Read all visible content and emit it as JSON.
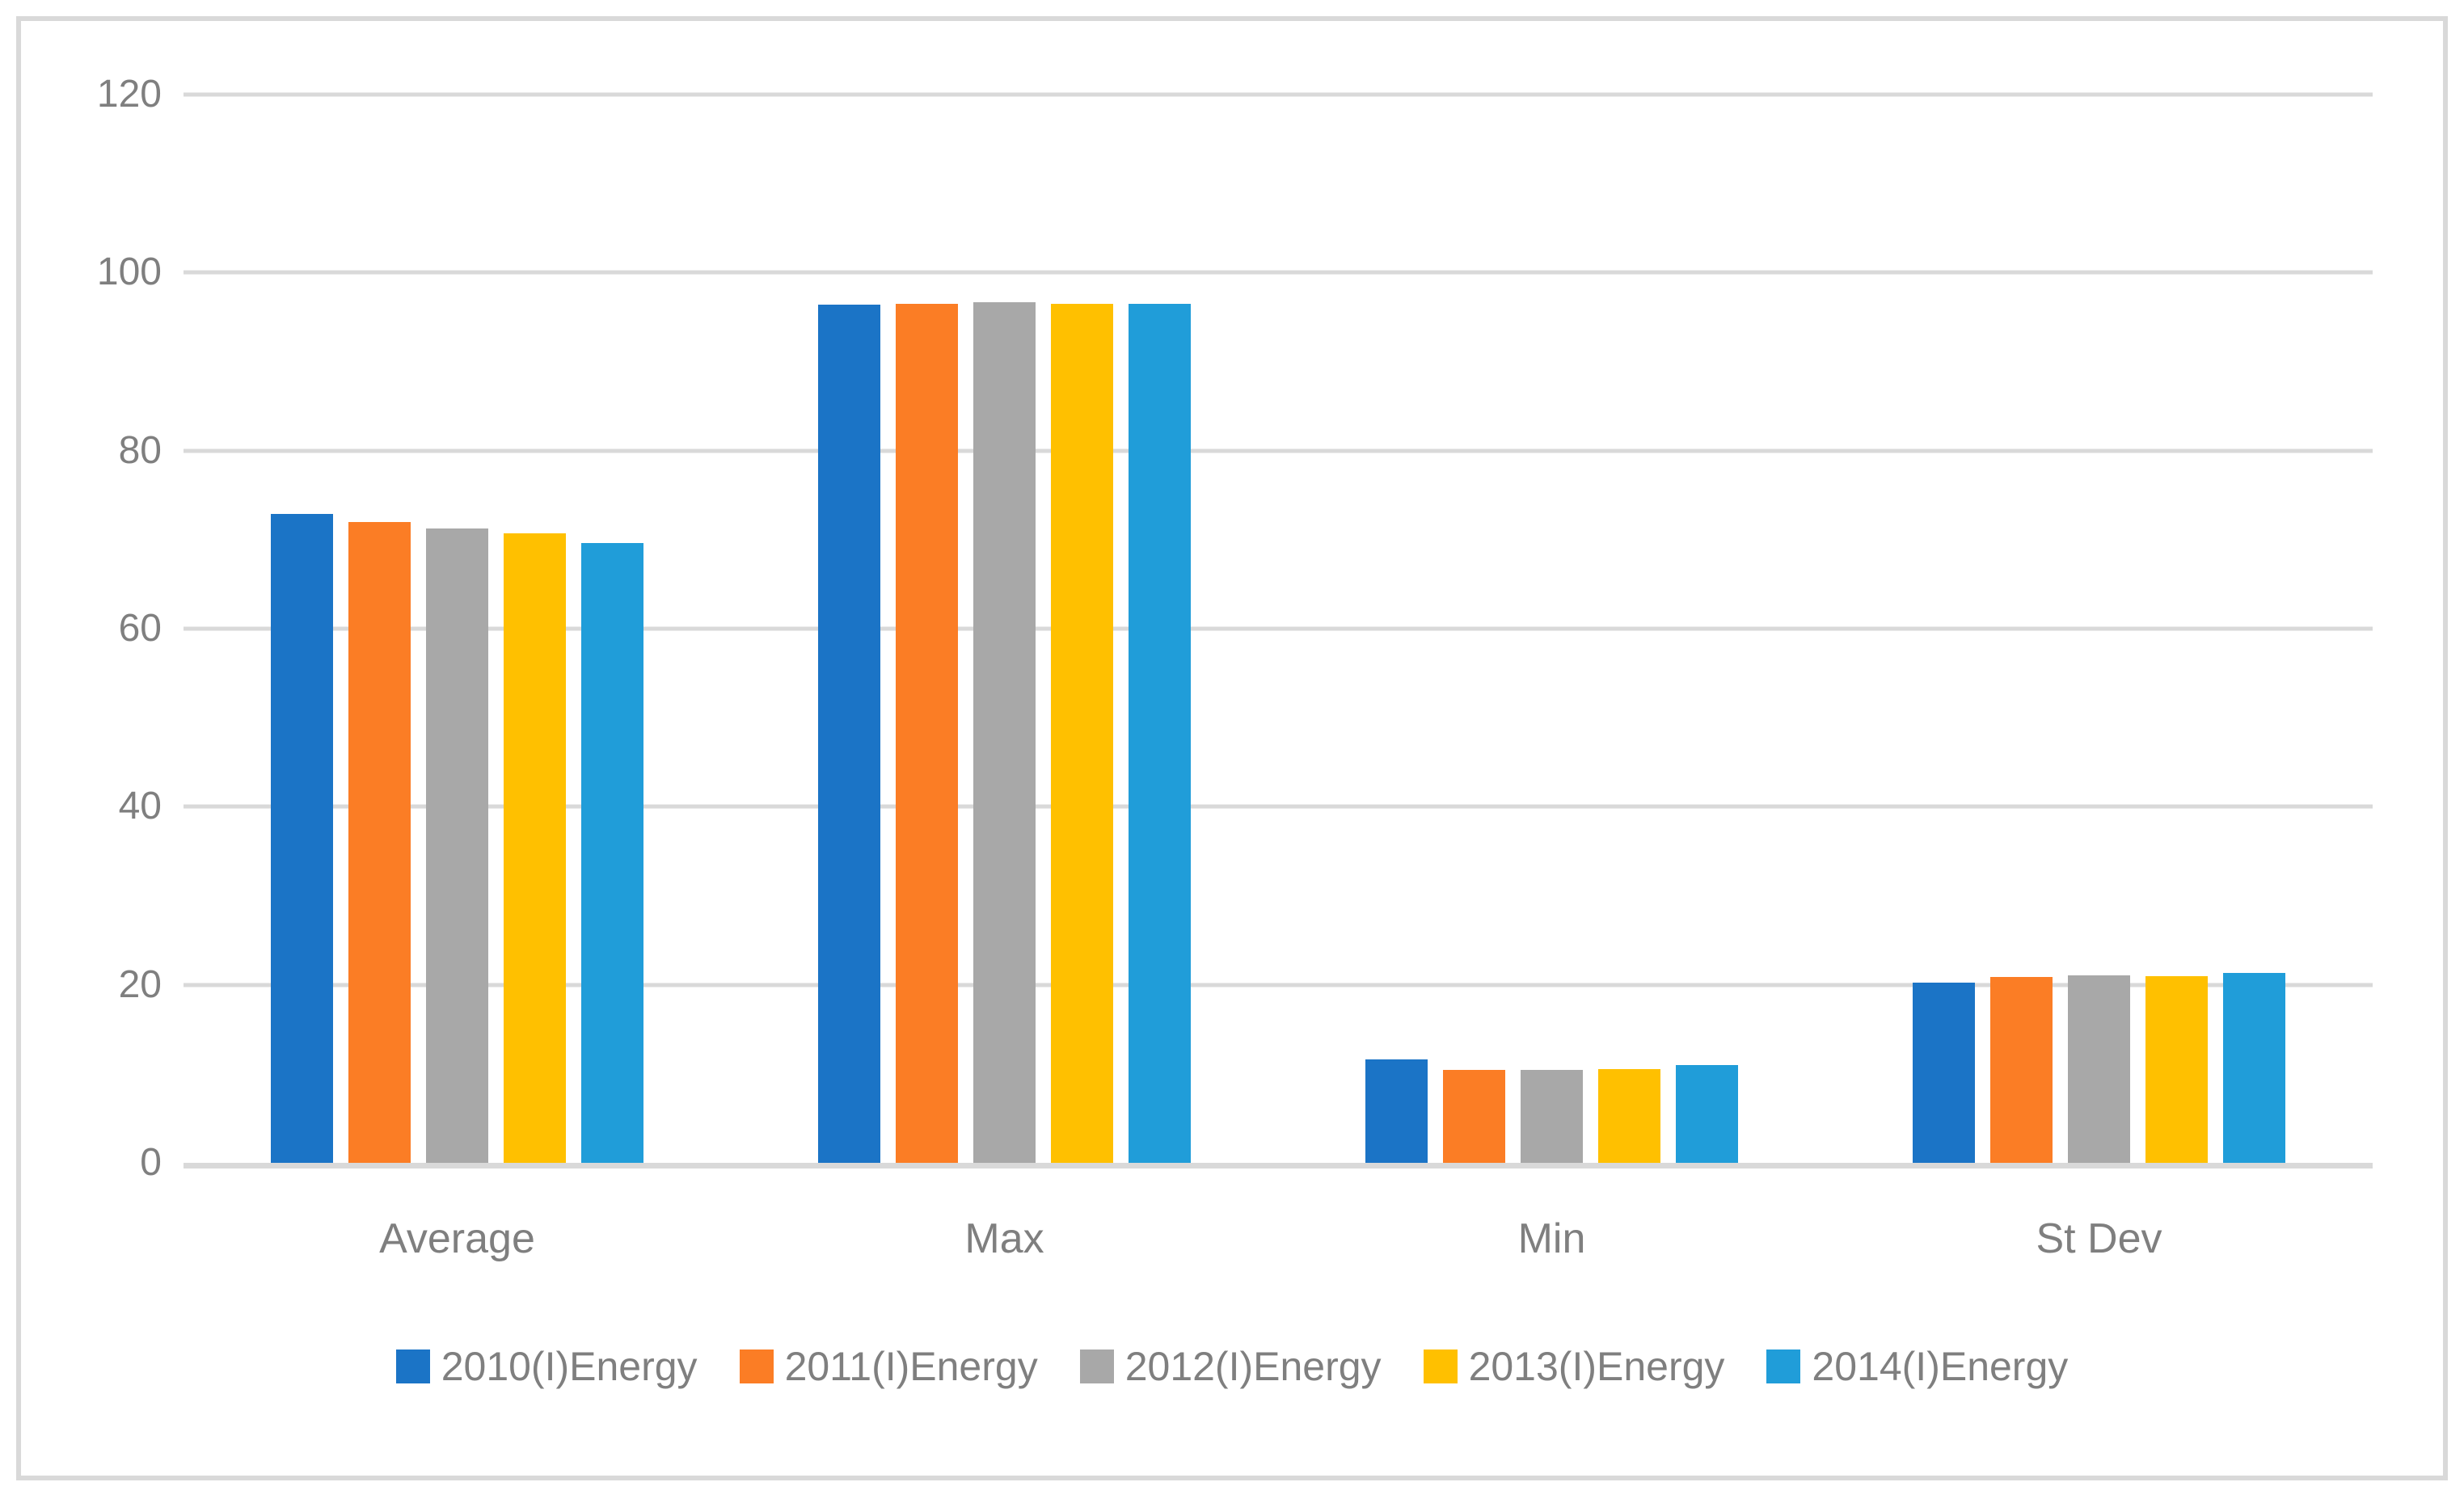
{
  "figure": {
    "background": "#FFFFFF",
    "border_color": "#D9D9D9",
    "gridline_color": "#D9D9D9",
    "text_color": "#7F7F7F"
  },
  "chart_data": {
    "type": "bar",
    "title": "",
    "xlabel": "",
    "ylabel": "",
    "categories": [
      "Average",
      "Max",
      "Min",
      "St Dev"
    ],
    "series": [
      {
        "name": "2010(I)Energy",
        "color": "#1B74C6",
        "values": [
          72.9,
          96.4,
          11.6,
          20.2
        ]
      },
      {
        "name": "2011(I)Energy",
        "color": "#FB7D25",
        "values": [
          72.0,
          96.5,
          10.4,
          20.9
        ]
      },
      {
        "name": "2012(I)Energy",
        "color": "#A8A8A8",
        "values": [
          71.3,
          96.7,
          10.4,
          21.1
        ]
      },
      {
        "name": "2013(I)Energy",
        "color": "#FFC000",
        "values": [
          70.7,
          96.5,
          10.5,
          21.0
        ]
      },
      {
        "name": "2014(I)Energy",
        "color": "#209DD9",
        "values": [
          69.6,
          96.5,
          11.0,
          21.3
        ]
      }
    ],
    "ylim": [
      0,
      120
    ],
    "yticks": [
      0,
      20,
      40,
      60,
      80,
      100,
      120
    ],
    "grid": true,
    "legend_position": "bottom"
  }
}
